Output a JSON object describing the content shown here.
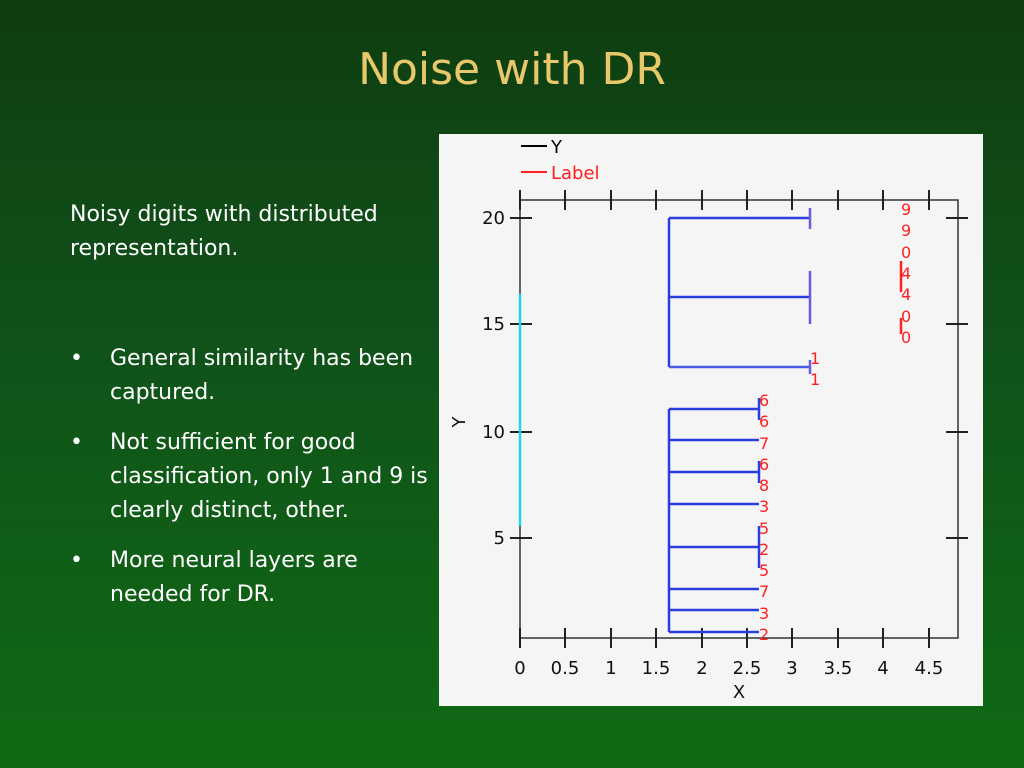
{
  "slide": {
    "title": "Noise with DR",
    "intro": "Noisy digits with distributed representation.",
    "bullets": [
      "General similarity has been captured.",
      "Not sufficient for good classification, only 1 and 9 is clearly distinct, other.",
      "More neural layers are needed for DR."
    ],
    "bullet_char": "•"
  },
  "chart_data": {
    "type": "dendrogram",
    "xlabel": "X",
    "ylabel": "Y",
    "xlim": [
      0,
      5.0
    ],
    "ylim": [
      0,
      22
    ],
    "x_ticks": [
      "0",
      "0.5",
      "1",
      "1.5",
      "2",
      "2.5",
      "3",
      "3.5",
      "4",
      "4.5"
    ],
    "y_ticks": [
      "5",
      "10",
      "15",
      "20"
    ],
    "legend": [
      {
        "name": "Y",
        "color": "#000000"
      },
      {
        "name": "Label",
        "color": "#ff2020"
      }
    ],
    "leaf_labels": [
      "9",
      "9",
      "0",
      "4",
      "4",
      "0",
      "0",
      "1",
      "1",
      "6",
      "6",
      "7",
      "6",
      "8",
      "3",
      "5",
      "2",
      "5",
      "7",
      "3",
      "2"
    ]
  }
}
